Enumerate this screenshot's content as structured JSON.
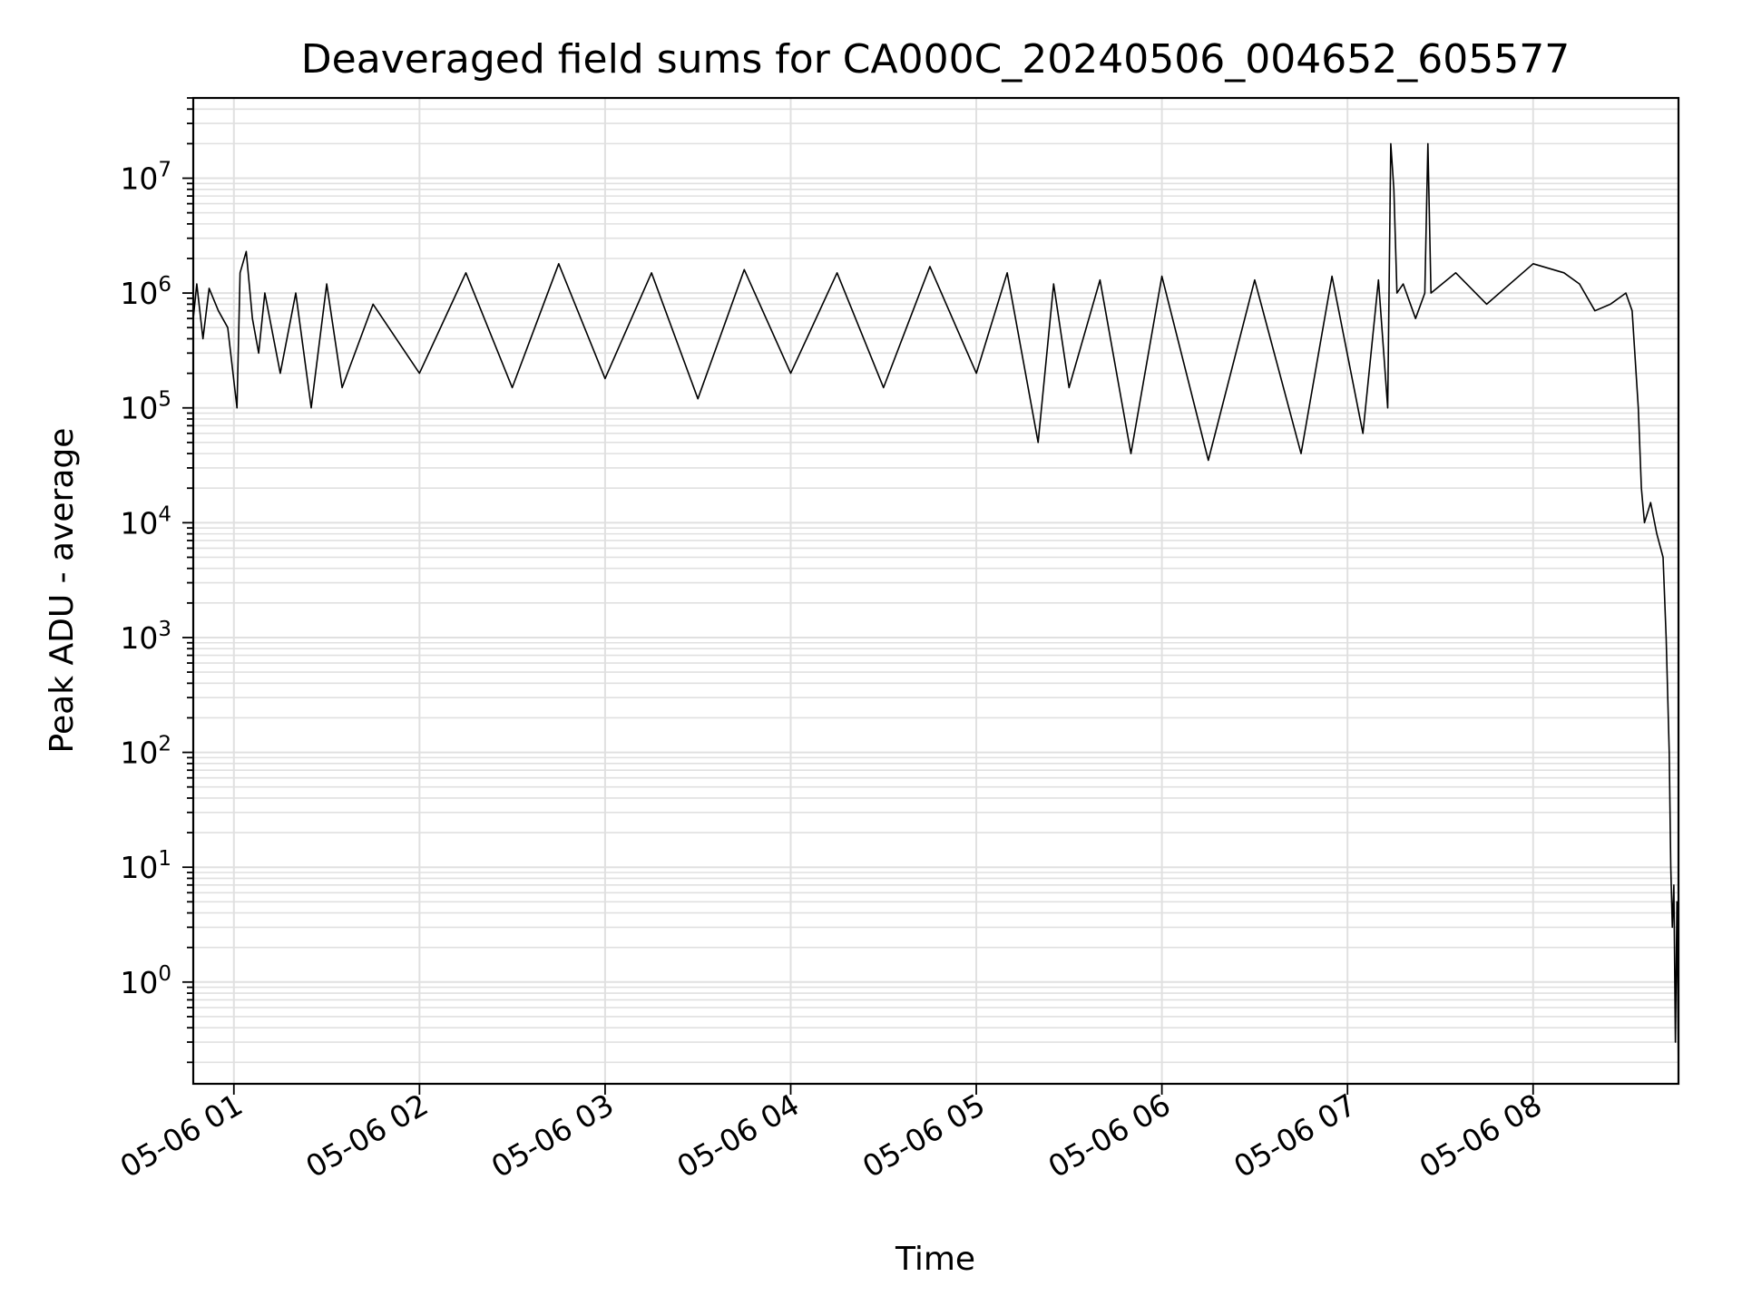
{
  "chart_data": {
    "type": "line",
    "title": "Deaveraged field sums for CA000C_20240506_004652_605577",
    "xlabel": "Time",
    "ylabel": "Peak ADU - average",
    "yscale": "log",
    "ylim": [
      0.13,
      50000000
    ],
    "xlim": [
      "2024-05-06T00:46:52",
      "2024-05-06T08:47:00"
    ],
    "grid": true,
    "line_color": "#000000",
    "grid_color": "#e0e0e0",
    "x_ticks": [
      {
        "value": "2024-05-06T01:00:00",
        "label": "05-06 01"
      },
      {
        "value": "2024-05-06T02:00:00",
        "label": "05-06 02"
      },
      {
        "value": "2024-05-06T03:00:00",
        "label": "05-06 03"
      },
      {
        "value": "2024-05-06T04:00:00",
        "label": "05-06 04"
      },
      {
        "value": "2024-05-06T05:00:00",
        "label": "05-06 05"
      },
      {
        "value": "2024-05-06T06:00:00",
        "label": "05-06 06"
      },
      {
        "value": "2024-05-06T07:00:00",
        "label": "05-06 07"
      },
      {
        "value": "2024-05-06T08:00:00",
        "label": "05-06 08"
      }
    ],
    "y_ticks": [
      {
        "value": 1,
        "base": "10",
        "exp": "0"
      },
      {
        "value": 10,
        "base": "10",
        "exp": "1"
      },
      {
        "value": 100,
        "base": "10",
        "exp": "2"
      },
      {
        "value": 1000,
        "base": "10",
        "exp": "3"
      },
      {
        "value": 10000,
        "base": "10",
        "exp": "4"
      },
      {
        "value": 100000,
        "base": "10",
        "exp": "5"
      },
      {
        "value": 1000000,
        "base": "10",
        "exp": "6"
      },
      {
        "value": 10000000,
        "base": "10",
        "exp": "7"
      }
    ],
    "series": [
      {
        "name": "",
        "x": [
          "2024-05-06T00:46:52",
          "2024-05-06T00:48:00",
          "2024-05-06T00:50:00",
          "2024-05-06T00:52:00",
          "2024-05-06T00:55:00",
          "2024-05-06T00:58:00",
          "2024-05-06T01:01:00",
          "2024-05-06T01:02:00",
          "2024-05-06T01:04:00",
          "2024-05-06T01:06:00",
          "2024-05-06T01:08:00",
          "2024-05-06T01:10:00",
          "2024-05-06T01:15:00",
          "2024-05-06T01:20:00",
          "2024-05-06T01:25:00",
          "2024-05-06T01:30:00",
          "2024-05-06T01:35:00",
          "2024-05-06T01:45:00",
          "2024-05-06T02:00:00",
          "2024-05-06T02:15:00",
          "2024-05-06T02:30:00",
          "2024-05-06T02:45:00",
          "2024-05-06T03:00:00",
          "2024-05-06T03:15:00",
          "2024-05-06T03:30:00",
          "2024-05-06T03:45:00",
          "2024-05-06T04:00:00",
          "2024-05-06T04:15:00",
          "2024-05-06T04:30:00",
          "2024-05-06T04:45:00",
          "2024-05-06T05:00:00",
          "2024-05-06T05:10:00",
          "2024-05-06T05:20:00",
          "2024-05-06T05:25:00",
          "2024-05-06T05:30:00",
          "2024-05-06T05:40:00",
          "2024-05-06T05:50:00",
          "2024-05-06T06:00:00",
          "2024-05-06T06:15:00",
          "2024-05-06T06:30:00",
          "2024-05-06T06:45:00",
          "2024-05-06T06:55:00",
          "2024-05-06T07:05:00",
          "2024-05-06T07:10:00",
          "2024-05-06T07:13:00",
          "2024-05-06T07:14:00",
          "2024-05-06T07:15:00",
          "2024-05-06T07:16:00",
          "2024-05-06T07:18:00",
          "2024-05-06T07:22:00",
          "2024-05-06T07:25:00",
          "2024-05-06T07:26:00",
          "2024-05-06T07:27:00",
          "2024-05-06T07:35:00",
          "2024-05-06T07:45:00",
          "2024-05-06T08:00:00",
          "2024-05-06T08:10:00",
          "2024-05-06T08:15:00",
          "2024-05-06T08:20:00",
          "2024-05-06T08:25:00",
          "2024-05-06T08:30:00",
          "2024-05-06T08:32:00",
          "2024-05-06T08:34:00",
          "2024-05-06T08:35:00",
          "2024-05-06T08:36:00",
          "2024-05-06T08:38:00",
          "2024-05-06T08:40:00",
          "2024-05-06T08:42:00",
          "2024-05-06T08:43:00",
          "2024-05-06T08:44:00",
          "2024-05-06T08:44:30",
          "2024-05-06T08:45:00",
          "2024-05-06T08:45:30",
          "2024-05-06T08:46:00",
          "2024-05-06T08:46:30",
          "2024-05-06T08:47:00"
        ],
        "y": [
          600000,
          1200000,
          400000,
          1100000,
          700000,
          500000,
          100000,
          1500000,
          2300000,
          600000,
          300000,
          1000000,
          200000,
          1000000,
          100000,
          1200000,
          150000,
          800000,
          200000,
          1500000,
          150000,
          1800000,
          180000,
          1500000,
          120000,
          1600000,
          200000,
          1500000,
          150000,
          1700000,
          200000,
          1500000,
          50000,
          1200000,
          150000,
          1300000,
          40000,
          1400000,
          35000,
          1300000,
          40000,
          1400000,
          60000,
          1300000,
          100000,
          20000000,
          8000000,
          1000000,
          1200000,
          600000,
          1000000,
          20000000,
          1000000,
          1500000,
          800000,
          1800000,
          1500000,
          1200000,
          700000,
          800000,
          1000000,
          700000,
          100000,
          20000,
          10000,
          15000,
          8000,
          5000,
          1000,
          100,
          10,
          3,
          7,
          0.3,
          5,
          0.15
        ]
      }
    ]
  }
}
